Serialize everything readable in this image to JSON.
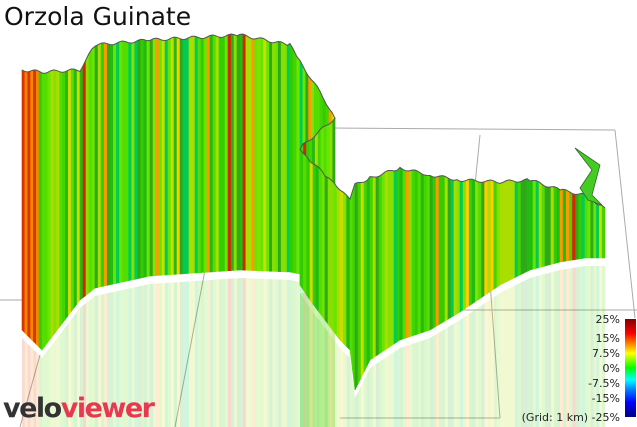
{
  "title": "Orzola Guinate",
  "logo": {
    "part1": "velo",
    "part2": "viewer",
    "colors": {
      "velo": "#333333",
      "viewer": "#e8384f"
    }
  },
  "legend": {
    "labels": [
      "25%",
      "15%",
      "7.5%",
      "0%",
      "-7.5%",
      "-15%",
      "-25%"
    ],
    "grid_note": "(Grid: 1 km)",
    "colors": [
      "#800000",
      "#ff0000",
      "#ff8000",
      "#ffff00",
      "#00ff00",
      "#00ffff",
      "#0080ff",
      "#0000ff",
      "#000080"
    ]
  }
}
